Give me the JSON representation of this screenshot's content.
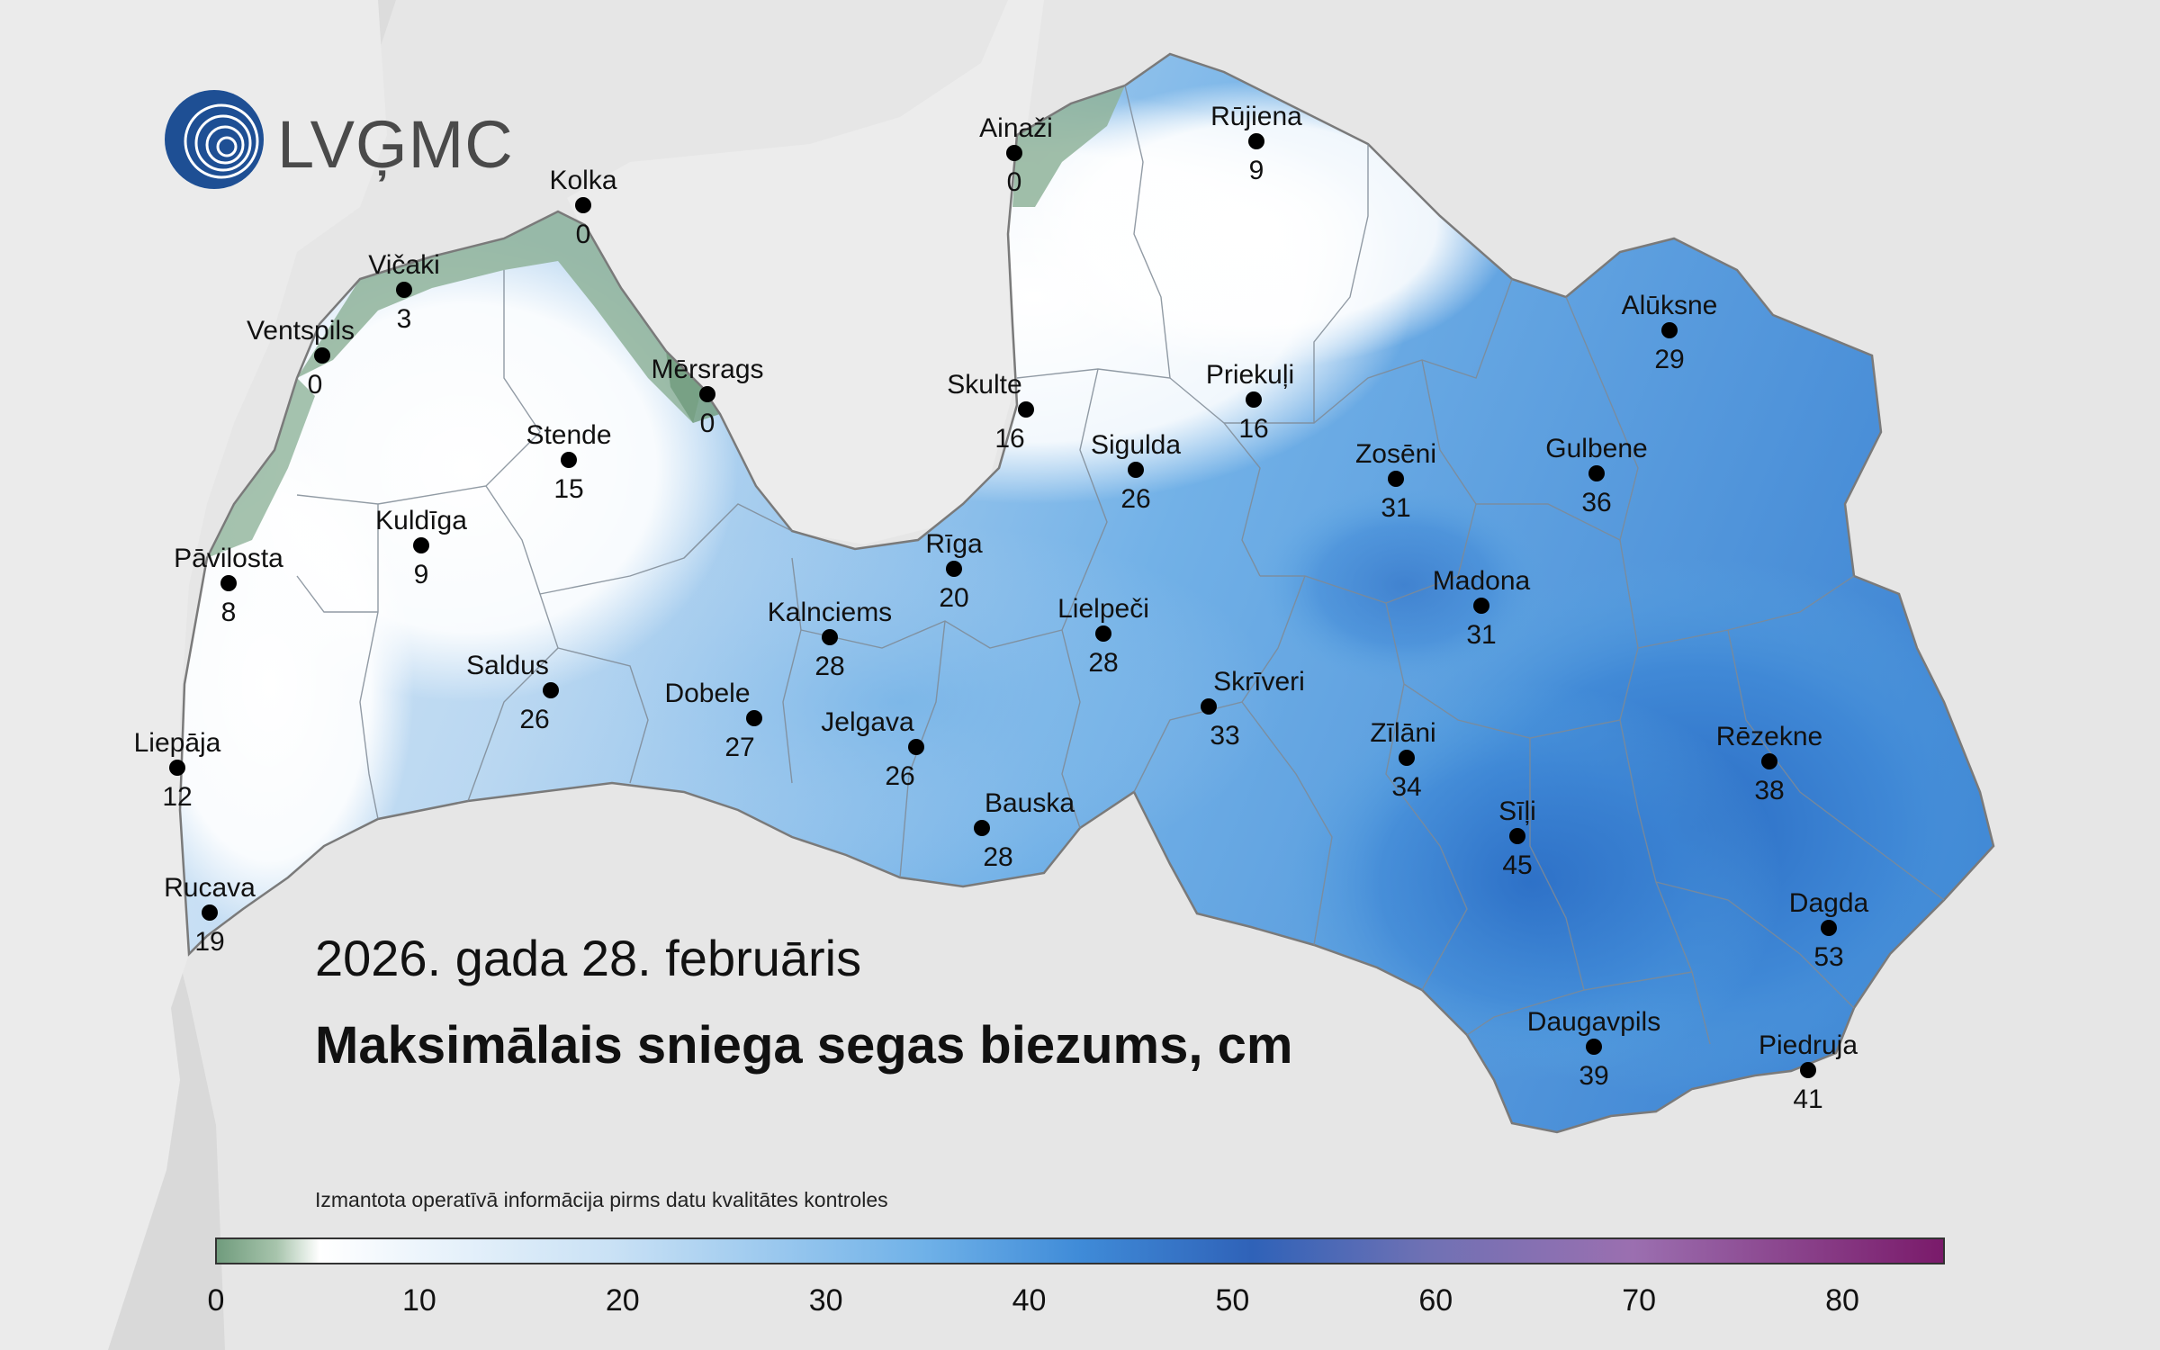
{
  "logo": {
    "text": "LVĢMC"
  },
  "title": {
    "date": "2026. gada 28. februāris",
    "subtitle": "Maksimālais sniega segas biezums, cm"
  },
  "note": "Izmantota operatīvā informācija pirms datu kvalitātes kontroles",
  "colors": {
    "background": "#e6e6e6",
    "land_white": "#ffffff",
    "light_blue": "#bcd9f2",
    "mid_blue": "#5ba6e2",
    "deep_blue": "#2a6cc4",
    "coast_green": "#6f9b7c",
    "purple": "#7a1a6a"
  },
  "legend": {
    "min": 0,
    "max": 85,
    "ticks": [
      "0",
      "10",
      "20",
      "30",
      "40",
      "50",
      "60",
      "70",
      "80"
    ]
  },
  "stations": [
    {
      "name": "Ainaži",
      "value": "0"
    },
    {
      "name": "Rūjiena",
      "value": "9"
    },
    {
      "name": "Kolka",
      "value": "0"
    },
    {
      "name": "Vičaki",
      "value": "3"
    },
    {
      "name": "Ventspils",
      "value": "0"
    },
    {
      "name": "Mērsrags",
      "value": "0"
    },
    {
      "name": "Skulte",
      "value": "16"
    },
    {
      "name": "Priekuļi",
      "value": "16"
    },
    {
      "name": "Alūksne",
      "value": "29"
    },
    {
      "name": "Stende",
      "value": "15"
    },
    {
      "name": "Sigulda",
      "value": "26"
    },
    {
      "name": "Zosēni",
      "value": "31"
    },
    {
      "name": "Gulbene",
      "value": "36"
    },
    {
      "name": "Kuldīga",
      "value": "9"
    },
    {
      "name": "Pāvilosta",
      "value": "8"
    },
    {
      "name": "Rīga",
      "value": "20"
    },
    {
      "name": "Madona",
      "value": "31"
    },
    {
      "name": "Kalnciems",
      "value": "28"
    },
    {
      "name": "Lielpeči",
      "value": "28"
    },
    {
      "name": "Saldus",
      "value": "26"
    },
    {
      "name": "Dobele",
      "value": "27"
    },
    {
      "name": "Skrīveri",
      "value": "33"
    },
    {
      "name": "Jelgava",
      "value": "26"
    },
    {
      "name": "Zīlāni",
      "value": "34"
    },
    {
      "name": "Rēzekne",
      "value": "38"
    },
    {
      "name": "Liepāja",
      "value": "12"
    },
    {
      "name": "Bauska",
      "value": "28"
    },
    {
      "name": "Sīļi",
      "value": "45"
    },
    {
      "name": "Rucava",
      "value": "19"
    },
    {
      "name": "Dagda",
      "value": "53"
    },
    {
      "name": "Daugavpils",
      "value": "39"
    },
    {
      "name": "Piedruja",
      "value": "41"
    }
  ]
}
